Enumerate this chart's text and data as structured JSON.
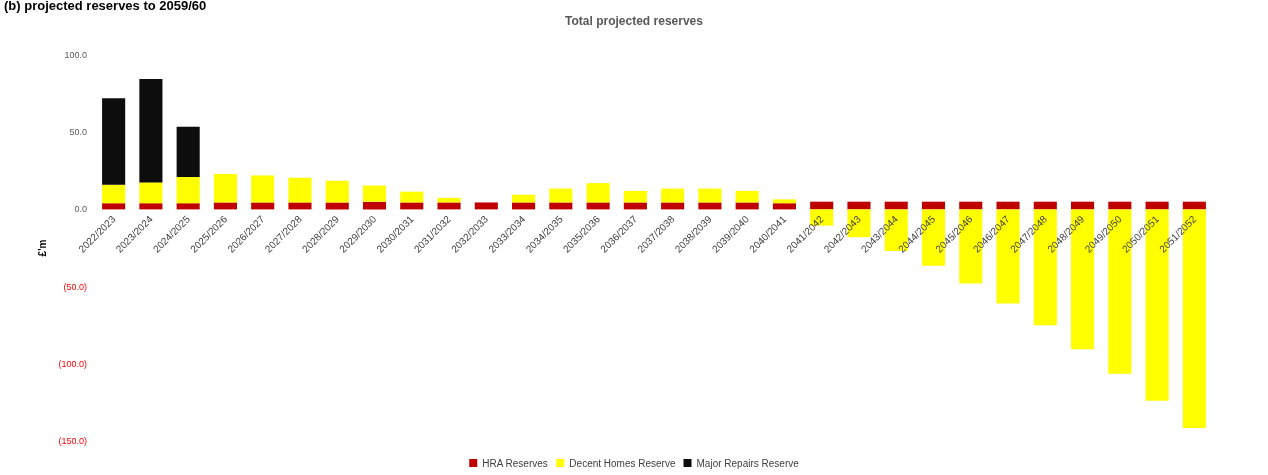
{
  "chart_data": {
    "type": "bar",
    "title": "Total projected reserves",
    "ylabel": "£'m",
    "annotations": [
      "(b) projected reserves to 2059/60"
    ],
    "categories": [
      "2022/2023",
      "2023/2024",
      "2024/2025",
      "2025/2026",
      "2026/2027",
      "2027/2028",
      "2028/2029",
      "2029/2030",
      "2030/2031",
      "2031/2032",
      "2032/2033",
      "2033/2034",
      "2034/2035",
      "2035/2036",
      "2036/2037",
      "2037/2038",
      "2038/2039",
      "2039/2040",
      "2040/2041",
      "2041/2042",
      "2042/2043",
      "2043/2044",
      "2044/2045",
      "2045/2046",
      "2046/2047",
      "2047/2048",
      "2048/2049",
      "2049/2050",
      "2050/2051",
      "2051/2052"
    ],
    "stacked": true,
    "series": [
      {
        "name": "HRA Reserves",
        "color": "#c00000",
        "values": [
          4,
          4,
          4,
          4.5,
          4.5,
          4.5,
          4.5,
          5,
          4.5,
          4.5,
          4.5,
          4.5,
          4.5,
          4.5,
          4.5,
          4.5,
          4.5,
          4.5,
          4,
          5,
          5,
          5,
          5,
          5,
          5,
          5,
          5,
          5,
          5,
          5
        ]
      },
      {
        "name": "Decent Homes Reserve",
        "color": "#ffff00",
        "values": [
          12,
          13.5,
          17,
          18.5,
          17.5,
          16,
          14,
          10.5,
          7,
          3,
          0,
          5,
          9,
          12.5,
          7.5,
          9,
          9,
          7.5,
          2.5,
          -10.5,
          -18,
          -27,
          -36.5,
          -48,
          -61,
          -75,
          -90.5,
          -106.5,
          -124,
          -141.5
        ]
      },
      {
        "name": "Major Repairs Reserve",
        "color": "#0d0d0d",
        "values": [
          56,
          67,
          32.5,
          0,
          0,
          0,
          0,
          0,
          0,
          0,
          0,
          0,
          0,
          0,
          0,
          0,
          0,
          0,
          0,
          0,
          0,
          0,
          0,
          0,
          0,
          0,
          0,
          0,
          0,
          0
        ]
      }
    ],
    "ylim": [
      -150,
      100
    ],
    "yticks": [
      {
        "value": -150,
        "label": "(150.0)"
      },
      {
        "value": -100,
        "label": "(100.0)"
      },
      {
        "value": -50,
        "label": "(50.0)"
      },
      {
        "value": 0,
        "label": "0.0"
      },
      {
        "value": 50,
        "label": "50.0"
      },
      {
        "value": 100,
        "label": "100.0"
      }
    ],
    "grid": false,
    "legend": "bottom"
  }
}
